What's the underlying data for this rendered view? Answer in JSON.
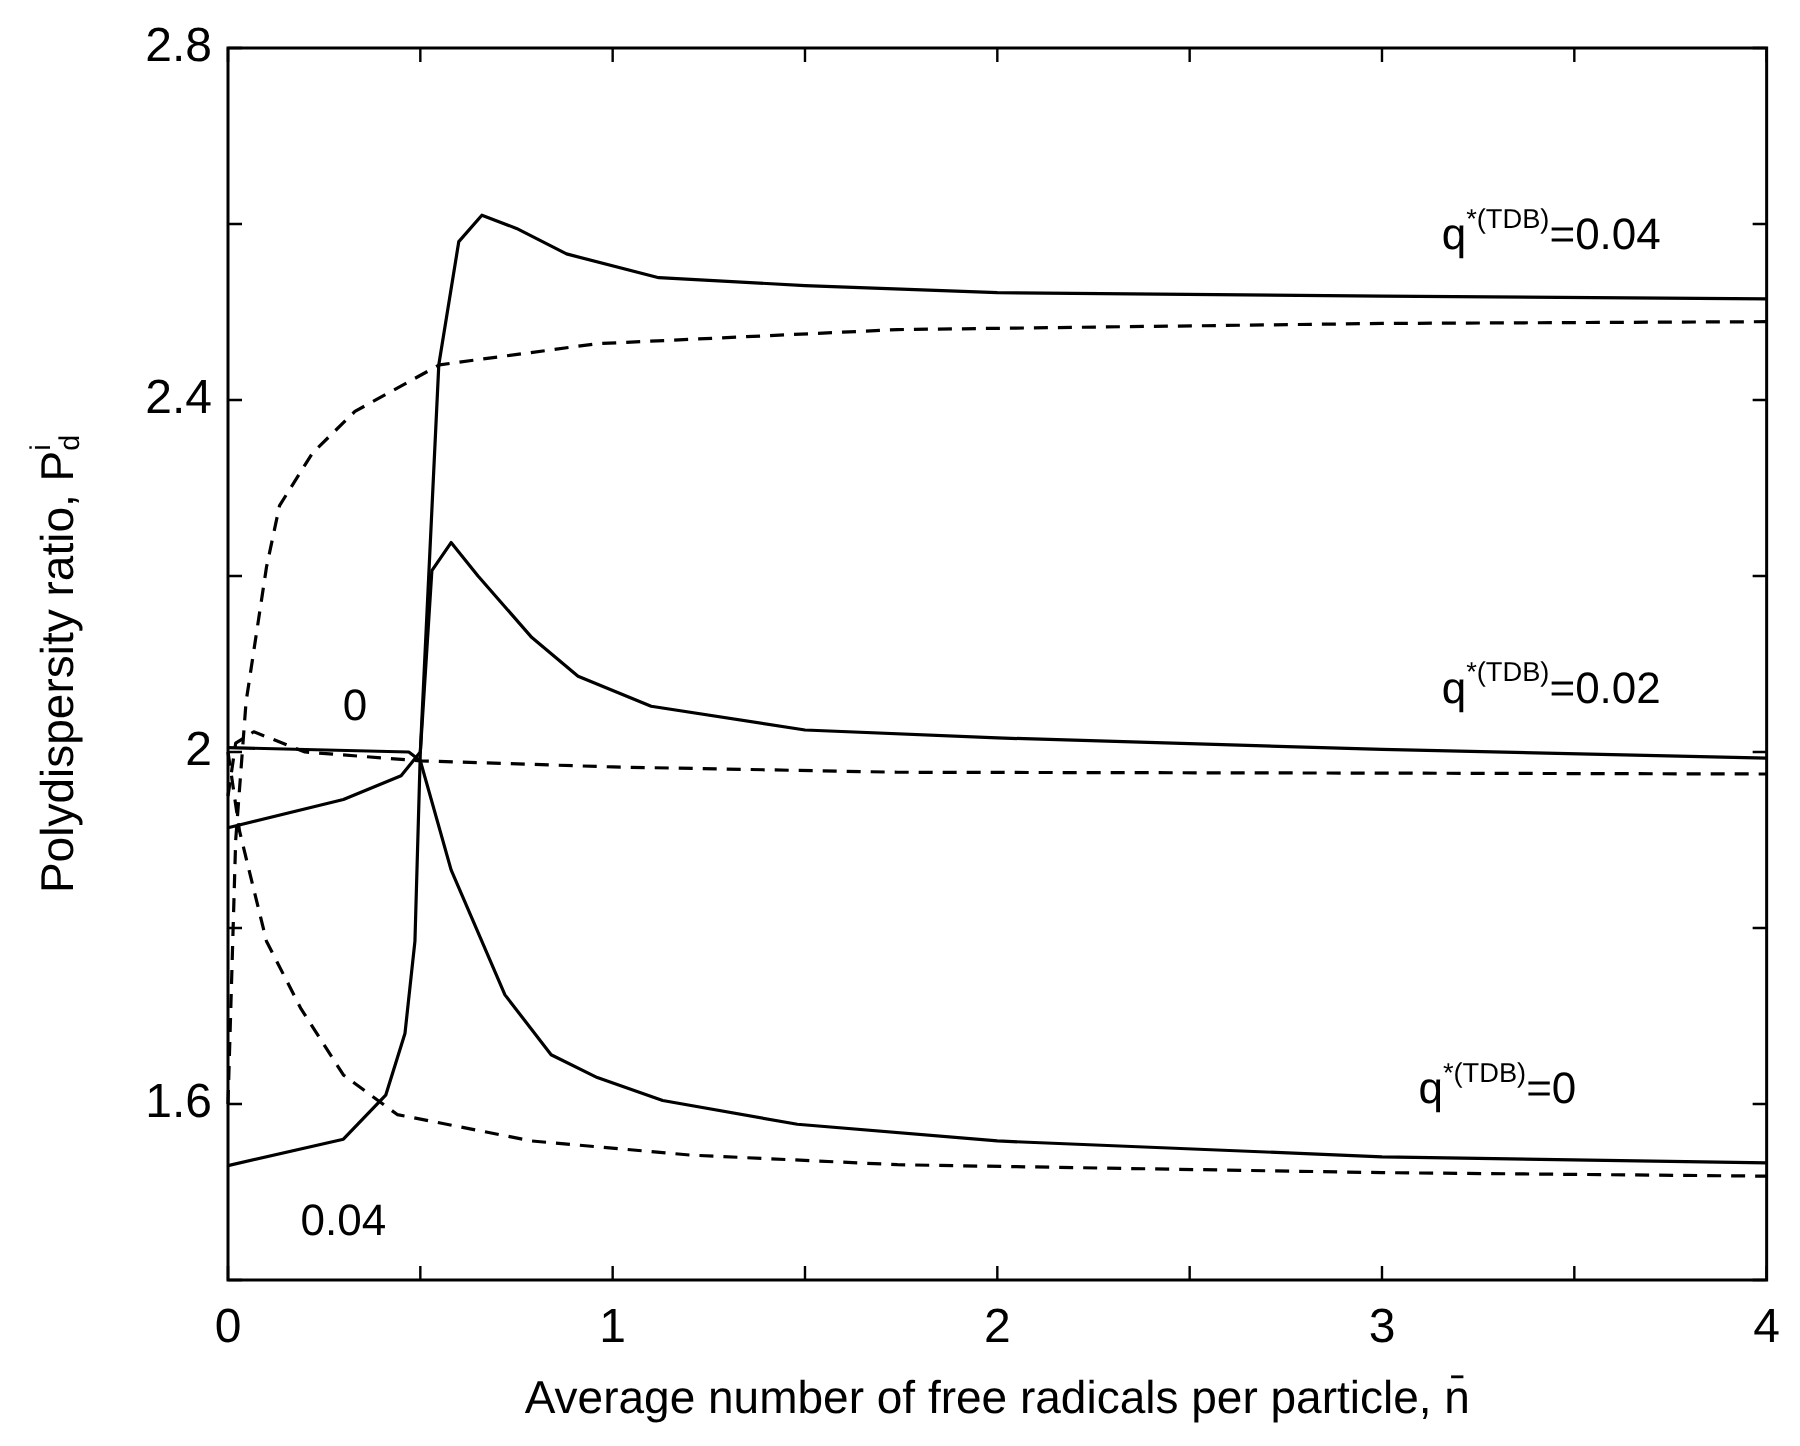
{
  "chart_data": {
    "type": "line",
    "xlabel": "Average number of free radicals per particle, n̄",
    "ylabel": "Polydispersity ratio, P$_{d}$$^{i}$",
    "xlim": [
      0,
      4
    ],
    "ylim": [
      1.4,
      2.8
    ],
    "xticks": [
      0,
      {
        "value": 0.5,
        "label": null
      },
      1,
      {
        "value": 1.5,
        "label": null
      },
      2,
      {
        "value": 2.5,
        "label": null
      },
      3,
      {
        "value": 3.5,
        "label": null
      },
      4
    ],
    "yticks": [
      {
        "value": 1.4,
        "label": null
      },
      1.6,
      {
        "value": 1.8,
        "label": null
      },
      2,
      {
        "value": 2.2,
        "label": null
      },
      2.4,
      {
        "value": 2.6,
        "label": null
      },
      2.8
    ],
    "grid": false,
    "legend": false,
    "marker": "none",
    "series": [
      {
        "color": "#000000",
        "line_style": "solid",
        "x": [
          0,
          0.3,
          0.41,
          0.46,
          0.486,
          0.5,
          0.548,
          0.6,
          0.66,
          0.75,
          0.88,
          1.12,
          1.5,
          2,
          3,
          4
        ],
        "values": [
          1.53,
          1.56,
          1.61,
          1.68,
          1.785,
          2.0,
          2.44,
          2.58,
          2.61,
          2.595,
          2.566,
          2.539,
          2.53,
          2.522,
          2.518,
          2.515
        ]
      },
      {
        "color": "#000000",
        "line_style": "solid",
        "x": [
          0,
          0.3,
          0.45,
          0.5,
          0.53,
          0.58,
          0.65,
          0.79,
          0.91,
          1.1,
          1.5,
          2,
          3,
          4
        ],
        "values": [
          1.914,
          1.946,
          1.973,
          2.0,
          2.206,
          2.238,
          2.2,
          2.13,
          2.086,
          2.052,
          2.025,
          2.016,
          2.003,
          1.993
        ]
      },
      {
        "color": "#000000",
        "line_style": "solid",
        "x": [
          0,
          0.47,
          0.5,
          0.58,
          0.72,
          0.84,
          0.96,
          1.13,
          1.48,
          2,
          3,
          4
        ],
        "values": [
          2.005,
          2.0,
          1.99,
          1.866,
          1.724,
          1.656,
          1.63,
          1.604,
          1.577,
          1.558,
          1.54,
          1.533
        ]
      },
      {
        "color": "#000000",
        "line_style": "dashed",
        "x": [
          0,
          0.02,
          0.047,
          0.1,
          0.134,
          0.22,
          0.33,
          0.55,
          0.96,
          1.74,
          3,
          4
        ],
        "values": [
          1.6,
          1.9,
          2.057,
          2.21,
          2.28,
          2.34,
          2.387,
          2.44,
          2.464,
          2.48,
          2.487,
          2.489
        ]
      },
      {
        "color": "#000000",
        "line_style": "dashed",
        "x": [
          0,
          0.02,
          0.067,
          0.2,
          0.5,
          1,
          1.74,
          3,
          4
        ],
        "values": [
          1.95,
          2.01,
          2.023,
          2.0,
          1.99,
          1.983,
          1.977,
          1.976,
          1.975
        ]
      },
      {
        "color": "#000000",
        "line_style": "dashed",
        "x": [
          0,
          0.03,
          0.1,
          0.19,
          0.3,
          0.44,
          0.79,
          1.2,
          1.74,
          3,
          4
        ],
        "values": [
          2.0,
          1.91,
          1.785,
          1.708,
          1.633,
          1.588,
          1.558,
          1.542,
          1.531,
          1.522,
          1.518
        ]
      }
    ],
    "annotations": [
      "q$^{*(TDB)}$=0.04",
      "q$^{*(TDB)}$=0.02",
      "q$^{*(TDB)}$=0",
      "0",
      "0.04"
    ]
  }
}
